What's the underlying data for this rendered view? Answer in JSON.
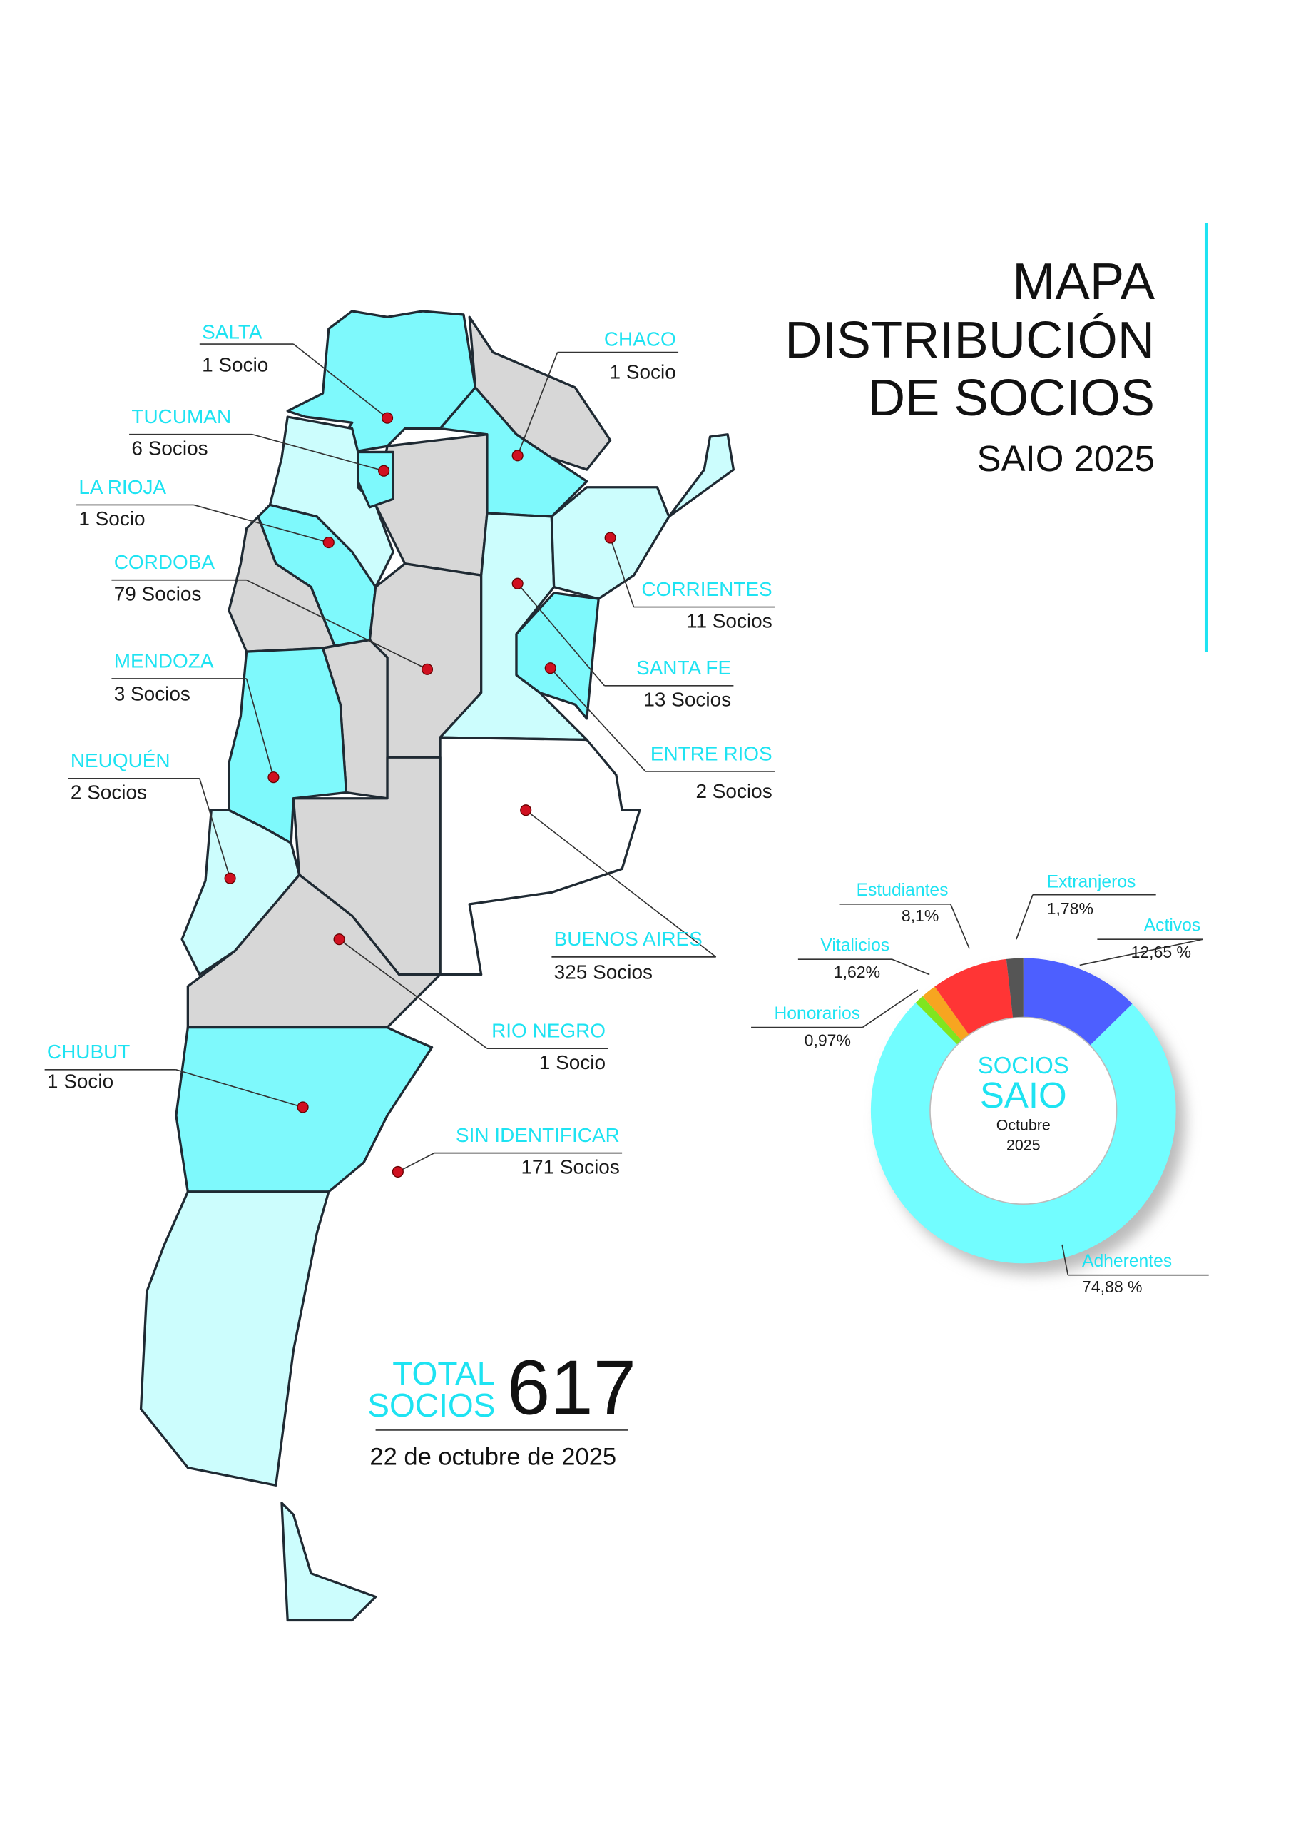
{
  "title": {
    "lines": [
      "MAPA",
      "DISTRIBUCIÓN",
      "DE SOCIOS"
    ],
    "subtitle": "SAIO 2025"
  },
  "provinces": [
    {
      "name": "SALTA",
      "count": "1 Socio"
    },
    {
      "name": "CHACO",
      "count": "1 Socio"
    },
    {
      "name": "TUCUMAN",
      "count": "6 Socios"
    },
    {
      "name": "LA RIOJA",
      "count": "1 Socio"
    },
    {
      "name": "CORDOBA",
      "count": "79 Socios"
    },
    {
      "name": "CORRIENTES",
      "count": "11 Socios"
    },
    {
      "name": "SANTA FE",
      "count": "13 Socios"
    },
    {
      "name": "MENDOZA",
      "count": "3 Socios"
    },
    {
      "name": "ENTRE RIOS",
      "count": "2 Socios"
    },
    {
      "name": "NEUQUÉN",
      "count": "2 Socios"
    },
    {
      "name": "BUENOS AIRES",
      "count": "325 Socios"
    },
    {
      "name": "RIO NEGRO",
      "count": "1 Socio"
    },
    {
      "name": "CHUBUT",
      "count": "1 Socio"
    },
    {
      "name": "SIN IDENTIFICAR",
      "count": "171 Socios"
    }
  ],
  "total": {
    "label_lines": [
      "TOTAL",
      "SOCIOS"
    ],
    "value": "617",
    "date": "22 de octubre de 2025"
  },
  "chart_data": {
    "type": "donut",
    "center_lines": [
      "SOCIOS",
      "SAIO",
      "Octubre",
      "2025"
    ],
    "categories": [
      "Activos",
      "Adherentes",
      "Honorarios",
      "Vitalicios",
      "Estudiantes",
      "Extranjeros"
    ],
    "values": [
      12.65,
      74.88,
      0.97,
      1.62,
      8.1,
      1.78
    ],
    "value_labels": [
      "12,65 %",
      "74,88 %",
      "0,97%",
      "1,62%",
      "8,1%",
      "1,78%"
    ],
    "colors": [
      "#4d5fff",
      "#72fdff",
      "#7fe61f",
      "#f7a520",
      "#ff3535",
      "#555555"
    ]
  }
}
